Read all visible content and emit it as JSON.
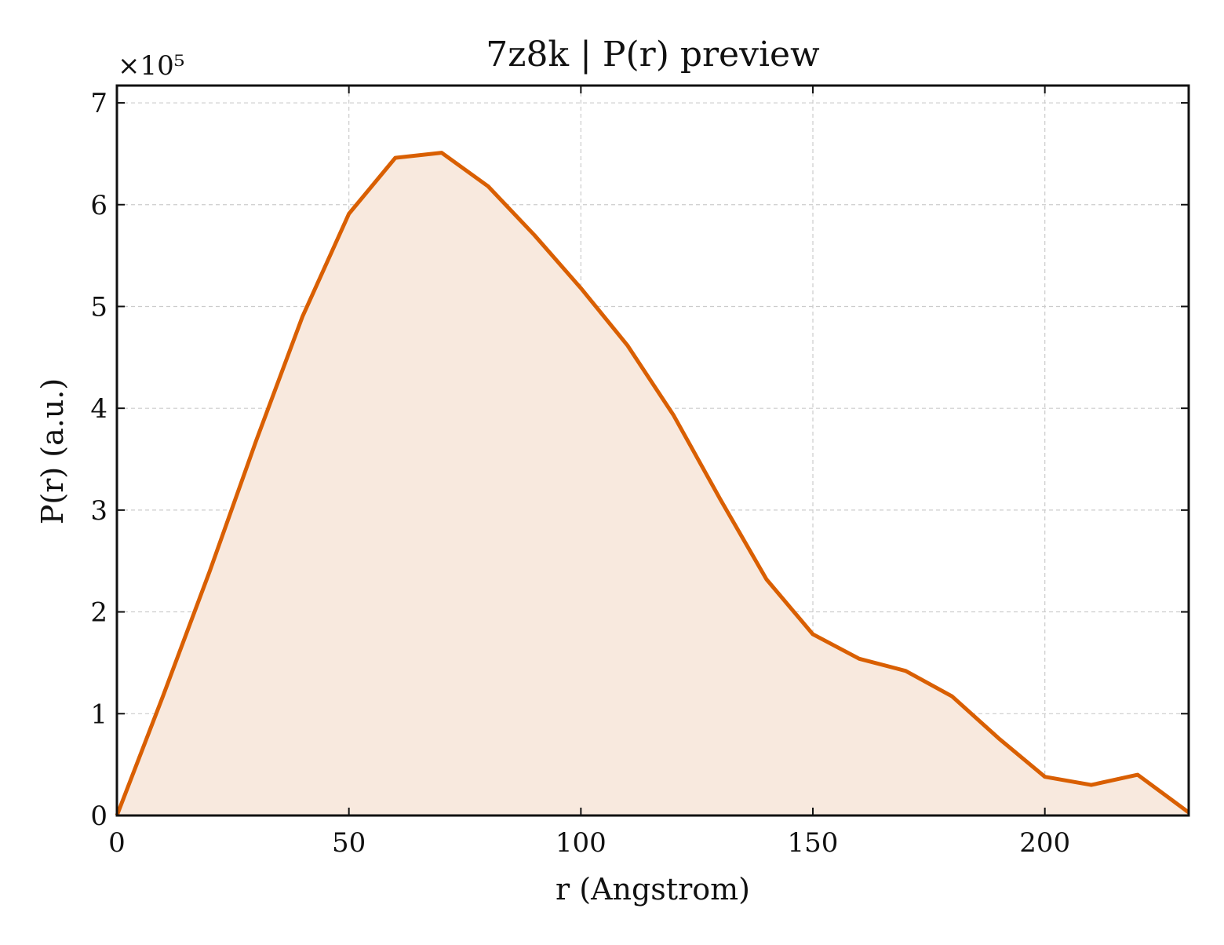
{
  "chart_data": {
    "type": "area",
    "title": "7z8k | P(r) preview",
    "xlabel": "r (Angstrom)",
    "ylabel": "P(r) (a.u.)",
    "y_offset_label": "×10⁵",
    "y_scale_factor": 100000,
    "xlim": [
      0,
      231
    ],
    "ylim": [
      0,
      717000
    ],
    "xticks": [
      0,
      50,
      100,
      150,
      200
    ],
    "yticks": [
      0,
      100000,
      200000,
      300000,
      400000,
      500000,
      600000,
      700000
    ],
    "xtick_labels": [
      "0",
      "50",
      "100",
      "150",
      "200"
    ],
    "ytick_labels": [
      "0",
      "1",
      "2",
      "3",
      "4",
      "5",
      "6",
      "7"
    ],
    "grid": true,
    "line_color": "#d95f02",
    "fill_color": "#f8e9de",
    "series": [
      {
        "x": [
          0,
          10,
          20,
          30,
          40,
          50,
          60,
          70,
          80,
          90,
          100,
          110,
          120,
          130,
          140,
          150,
          160,
          170,
          180,
          190,
          200,
          210,
          220,
          231
        ],
        "values": [
          0,
          118000,
          240000,
          368000,
          490000,
          591000,
          646000,
          651000,
          618000,
          570000,
          518000,
          462000,
          393000,
          311000,
          232000,
          178000,
          154000,
          142000,
          117000,
          76000,
          38000,
          30000,
          40000,
          3000
        ]
      }
    ]
  }
}
